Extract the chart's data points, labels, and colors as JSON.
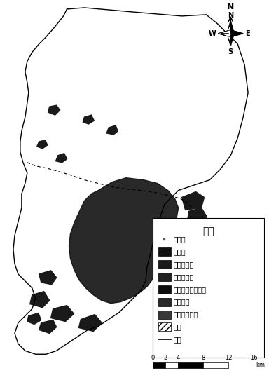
{
  "title": "",
  "legend_title": "图例",
  "legend_items": [
    {
      "label": "天然林",
      "type": "dot",
      "color": "#333333"
    },
    {
      "label": "人工林",
      "type": "box",
      "color": "#111111"
    },
    {
      "label": "天然疏林地",
      "type": "box",
      "color": "#1a1a1a"
    },
    {
      "label": "天然灌木林",
      "type": "box",
      "color": "#222222"
    },
    {
      "label": "人工近林未成林地",
      "type": "box",
      "color": "#0d0d0d"
    },
    {
      "label": "天然草地",
      "type": "box",
      "color": "#2a2a2a"
    },
    {
      "label": "水久性淡水湖",
      "type": "box",
      "color": "#383838"
    },
    {
      "label": "其它",
      "type": "hatch",
      "color": "#ffffff",
      "hatch": "////"
    },
    {
      "label": "边界",
      "type": "line",
      "color": "#000000"
    }
  ],
  "scalebar_values": [
    0,
    2,
    4,
    8,
    12,
    16
  ],
  "scalebar_unit": "km",
  "compass": true,
  "background_color": "#ffffff",
  "border_color": "#000000"
}
